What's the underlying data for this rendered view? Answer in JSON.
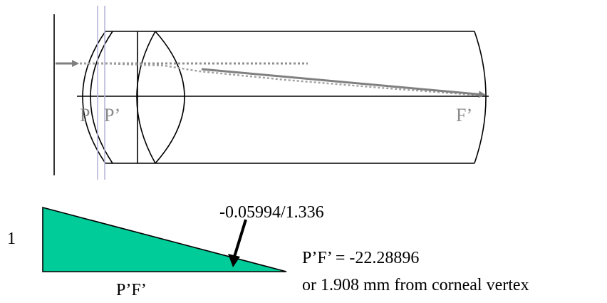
{
  "eye_diagram": {
    "labels": {
      "p": "P",
      "p_prime": "P’",
      "f_prime": "F’"
    },
    "colors": {
      "outline": "#000000",
      "ray": "#808080",
      "principal_planes": "#b8b8dc",
      "label": "#8a8a8a"
    }
  },
  "triangle_diagram": {
    "height_label": "1",
    "base_label": "P’F’",
    "slope_label": "-0.05994/1.336",
    "result_label": "P’F’ = -22.28896",
    "distance_label": "or 1.908 mm from corneal vertex",
    "colors": {
      "fill": "#00cc99",
      "outline": "#000000"
    }
  }
}
